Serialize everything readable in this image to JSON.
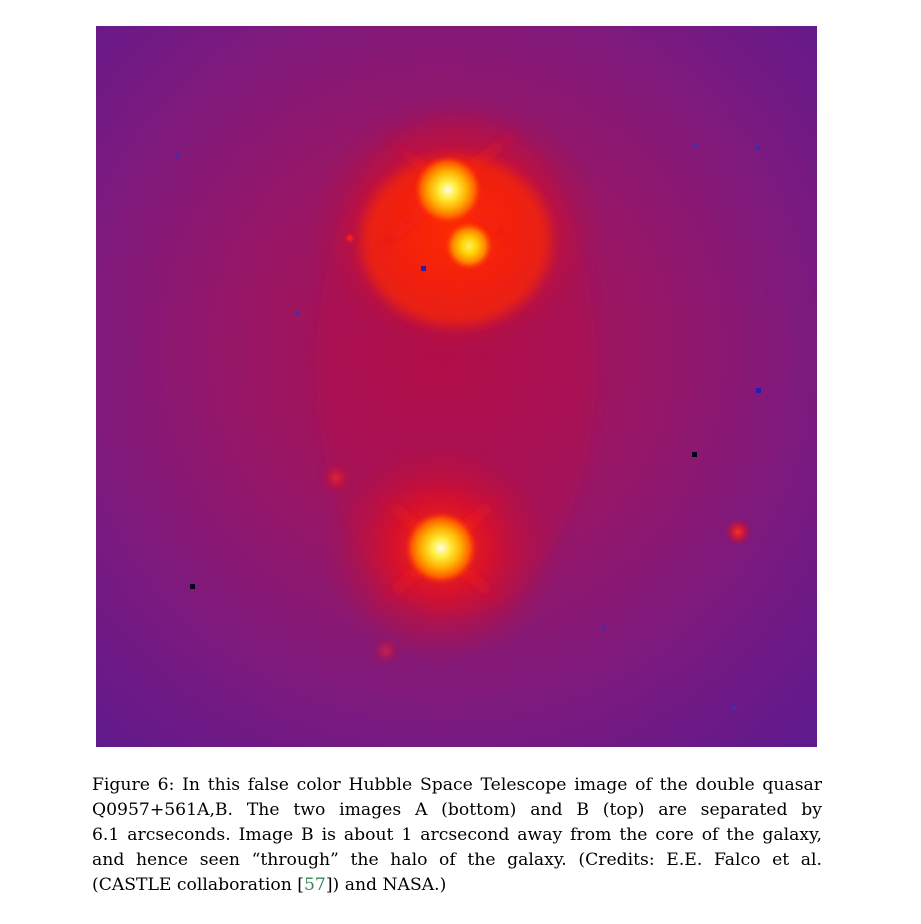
{
  "figure": {
    "label": "Figure 6:",
    "caption_lines": [
      "In this false color Hubble Space Telescope image of the double quasar",
      "Q0957+561A,B. The two images A (bottom) and B (top) are separated by",
      "6.1 arcseconds. Image B is about 1 arcsecond away from the core of the galaxy,",
      "and hence seen “through” the halo of the galaxy. (Credits: E.E. Falco et al.",
      "(CASTLE collaboration ",
      "57",
      "]) and NASA.)"
    ],
    "citation_open": "[",
    "colors": {
      "background_purple": "#6a1a8c",
      "mid_red": "#c8102e",
      "bright_red": "#ff1a00",
      "orange": "#ff6a00",
      "yellow": "#ffe000",
      "core_white": "#fffbe0",
      "citation_green": "#2e8b57"
    }
  }
}
